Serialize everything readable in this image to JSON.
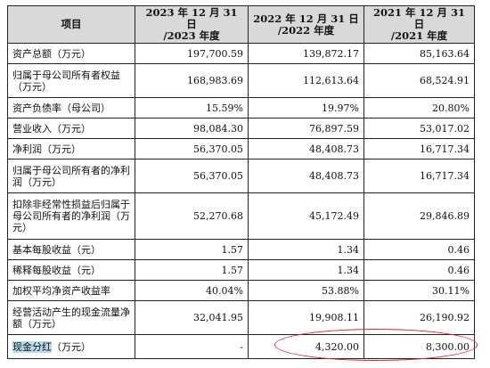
{
  "table": {
    "headers": [
      {
        "line1": "项目",
        "line2": ""
      },
      {
        "line1": "2023 年 12 月 31 日",
        "line2": "/2023 年度"
      },
      {
        "line1": "2022 年 12 月 31 日",
        "line2": "/2022 年度"
      },
      {
        "line1": "2021 年 12 月 31 日",
        "line2": "/2021 年度"
      }
    ],
    "rows": [
      {
        "label": "资产总额（万元）",
        "v2023": "197,700.59",
        "v2022": "139,872.17",
        "v2021": "85,163.64"
      },
      {
        "label": "归属于母公司所有者权益（万元）",
        "v2023": "168,983.69",
        "v2022": "112,613.64",
        "v2021": "68,524.91"
      },
      {
        "label": "资产负债率（母公司）",
        "v2023": "15.59%",
        "v2022": "19.97%",
        "v2021": "20.80%"
      },
      {
        "label": "营业收入（万元）",
        "v2023": "98,084.30",
        "v2022": "76,897.59",
        "v2021": "53,017.02"
      },
      {
        "label": "净利润（万元）",
        "v2023": "56,370.05",
        "v2022": "48,408.73",
        "v2021": "16,717.34"
      },
      {
        "label": "归属于母公司所有者的净利润（万元）",
        "v2023": "56,370.05",
        "v2022": "48,408.73",
        "v2021": "16,717.34"
      },
      {
        "label": "扣除非经常性损益后归属于母公司所有者的净利润（万元）",
        "v2023": "52,270.68",
        "v2022": "45,172.49",
        "v2021": "29,846.89"
      },
      {
        "label": "基本每股收益（元）",
        "v2023": "1.57",
        "v2022": "1.34",
        "v2021": "0.46"
      },
      {
        "label": "稀释每股收益（元）",
        "v2023": "1.57",
        "v2022": "1.34",
        "v2021": "0.46"
      },
      {
        "label": "加权平均净资产收益率",
        "v2023": "40.04%",
        "v2022": "53.88%",
        "v2021": "30.11%"
      },
      {
        "label": "经营活动产生的现金流量净额（万元）",
        "v2023": "32,041.95",
        "v2022": "19,908.11",
        "v2021": "26,190.92"
      },
      {
        "label_highlight": "现金分红",
        "label_rest": "（万元）",
        "v2023": "-",
        "v2022": "4,320.00",
        "v2021": "8,300.00"
      }
    ]
  },
  "colors": {
    "header_bg": "#d9d9d9",
    "highlight": "#b8dcef",
    "annotation": "#e02a2a"
  }
}
